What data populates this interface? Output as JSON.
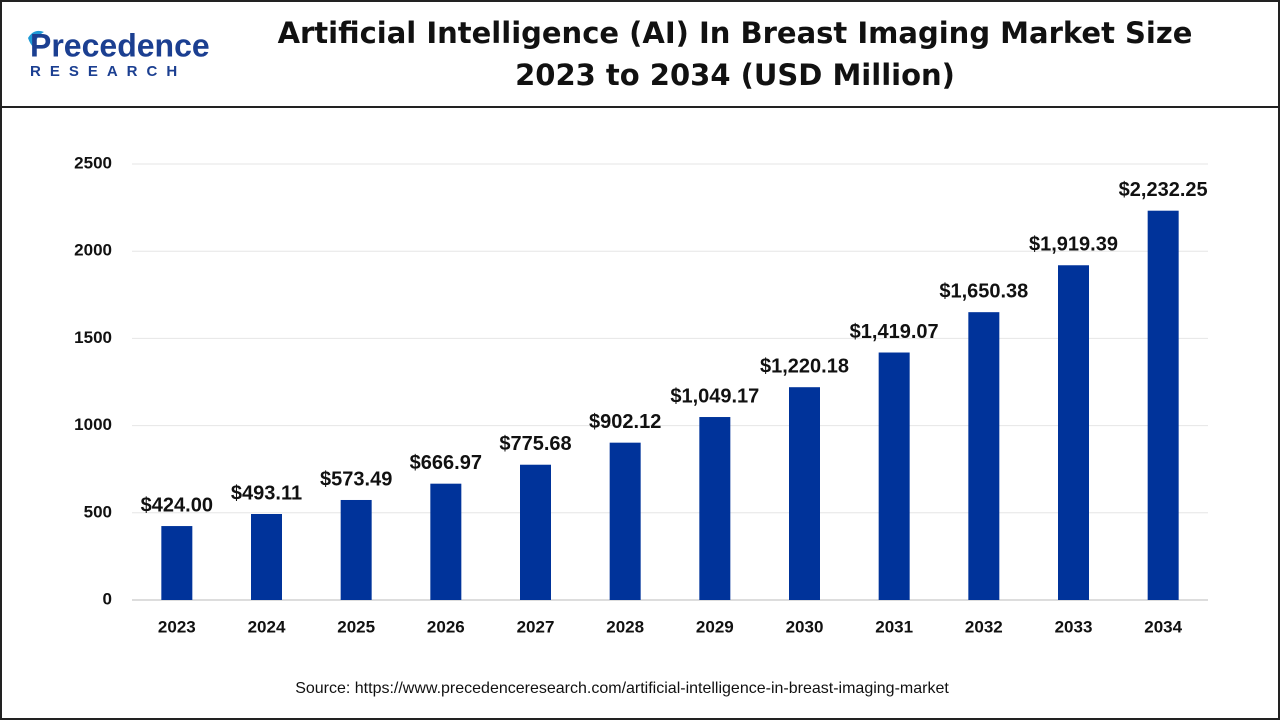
{
  "logo": {
    "name": "Precedence",
    "tagline": "RESEARCH"
  },
  "chart_data": {
    "type": "bar",
    "title": [
      "Artificial Intelligence (AI) In Breast Imaging Market Size",
      "2023 to 2034 (USD Million)"
    ],
    "categories": [
      "2023",
      "2024",
      "2025",
      "2026",
      "2027",
      "2028",
      "2029",
      "2030",
      "2031",
      "2032",
      "2033",
      "2034"
    ],
    "values": [
      424.0,
      493.11,
      573.49,
      666.97,
      775.68,
      902.12,
      1049.17,
      1220.18,
      1419.07,
      1650.38,
      1919.39,
      2232.25
    ],
    "value_labels": [
      "$424.00",
      "$493.11",
      "$573.49",
      "$666.97",
      "$775.68",
      "$902.12",
      "$1,049.17",
      "$1,220.18",
      "$1,419.07",
      "$1,650.38",
      "$1,919.39",
      "$2,232.25"
    ],
    "color": "#00339a",
    "ylim": [
      0,
      2500
    ],
    "yticks": [
      0,
      500,
      1000,
      1500,
      2000,
      2500
    ],
    "grid": true,
    "source": "Source: https://www.precedenceresearch.com/artificial-intelligence-in-breast-imaging-market"
  }
}
